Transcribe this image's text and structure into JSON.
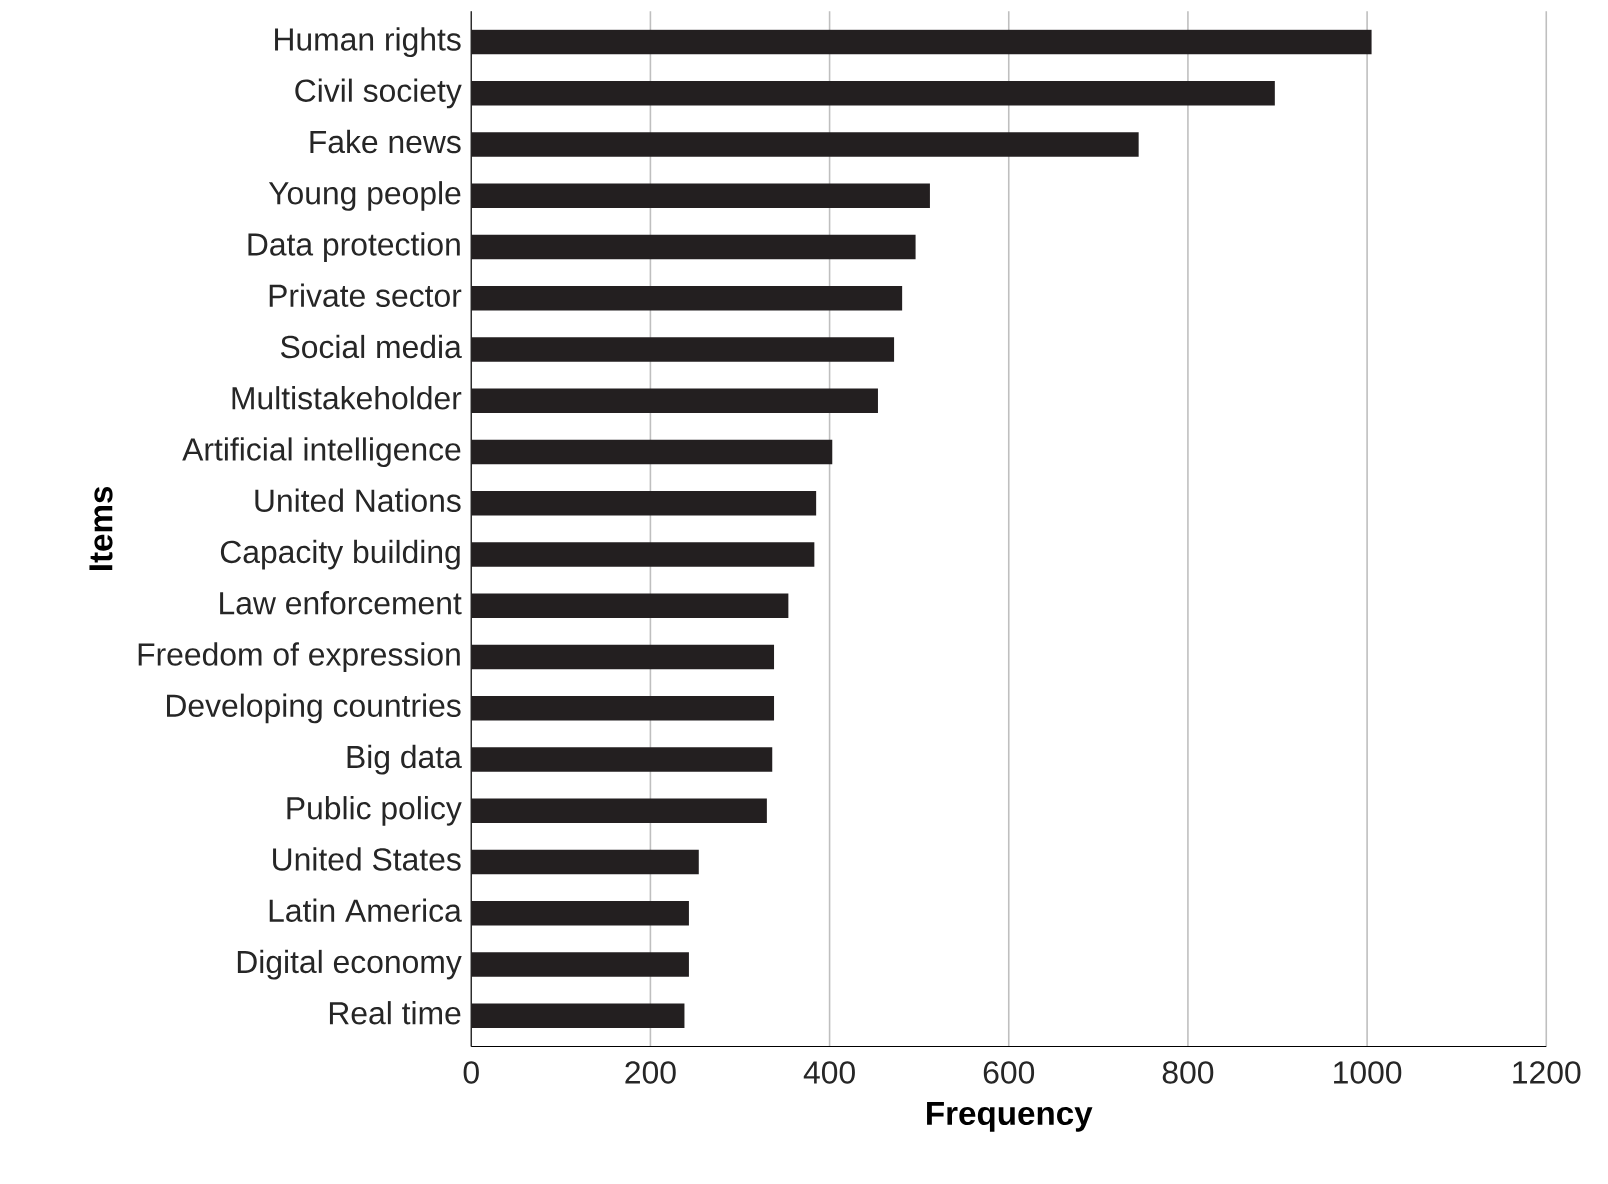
{
  "chart_data": {
    "type": "bar",
    "orientation": "horizontal",
    "xlabel": "Frequency",
    "ylabel": "Items",
    "categories": [
      "Human rights",
      "Civil society",
      "Fake news",
      "Young people",
      "Data protection",
      "Private sector",
      "Social media",
      "Multistakeholder",
      "Artificial intelligence",
      "United Nations",
      "Capacity building",
      "Law enforcement",
      "Freedom of expression",
      "Developing countries",
      "Big data",
      "Public policy",
      "United States",
      "Latin America",
      "Digital economy",
      "Real time"
    ],
    "values": [
      1005,
      897,
      745,
      512,
      496,
      481,
      472,
      454,
      403,
      385,
      383,
      354,
      338,
      338,
      336,
      330,
      254,
      243,
      243,
      238
    ],
    "color": "#231f20",
    "xlim": [
      0,
      1200
    ],
    "xticks": [
      0,
      200,
      400,
      600,
      800,
      1000,
      1200
    ],
    "grid": "x"
  }
}
